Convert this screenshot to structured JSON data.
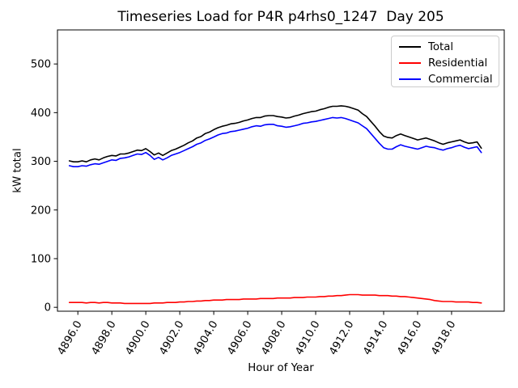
{
  "chart": {
    "title": "Timeseries Load for P4R p4rhs0_1247  Day 205",
    "xlabel": "Hour of Year",
    "ylabel": "kW total"
  },
  "chart_data": {
    "type": "line",
    "title": "Timeseries Load for P4R p4rhs0_1247  Day 205",
    "xlabel": "Hour of Year",
    "ylabel": "kW total",
    "grid": false,
    "legend_position": "upper right",
    "xlim": [
      4894.8,
      4921.1
    ],
    "ylim": [
      -8,
      570
    ],
    "x_ticks": [
      4896.0,
      4898.0,
      4900.0,
      4902.0,
      4904.0,
      4906.0,
      4908.0,
      4910.0,
      4912.0,
      4914.0,
      4916.0,
      4918.0
    ],
    "x_tick_decimals": 1,
    "y_ticks": [
      0,
      100,
      200,
      300,
      400,
      500
    ],
    "x_start": 4895.5,
    "x_step": 0.25,
    "n_points": 98,
    "series": [
      {
        "name": "Total",
        "color": "#000000",
        "values": [
          301,
          299,
          299,
          301,
          299,
          303,
          305,
          303,
          307,
          310,
          312,
          311,
          315,
          315,
          317,
          320,
          323,
          322,
          326,
          320,
          313,
          317,
          312,
          317,
          322,
          325,
          329,
          333,
          338,
          342,
          348,
          351,
          357,
          360,
          365,
          369,
          372,
          374,
          377,
          378,
          380,
          383,
          385,
          388,
          390,
          390,
          393,
          394,
          394,
          392,
          391,
          389,
          390,
          393,
          395,
          398,
          400,
          402,
          403,
          406,
          408,
          411,
          413,
          413,
          414,
          413,
          411,
          408,
          405,
          398,
          392,
          382,
          372,
          361,
          352,
          349,
          348,
          353,
          356,
          353,
          350,
          347,
          344,
          346,
          348,
          345,
          342,
          338,
          335,
          338,
          340,
          342,
          344,
          340,
          337,
          338,
          340,
          327
        ]
      },
      {
        "name": "Residential",
        "color": "#ff0000",
        "values": [
          10,
          10,
          10,
          10,
          9,
          10,
          10,
          9,
          10,
          10,
          9,
          9,
          9,
          8,
          8,
          8,
          8,
          8,
          8,
          8,
          9,
          9,
          9,
          10,
          10,
          10,
          11,
          11,
          12,
          12,
          13,
          13,
          14,
          14,
          15,
          15,
          15,
          16,
          16,
          16,
          16,
          17,
          17,
          17,
          17,
          18,
          18,
          18,
          18,
          19,
          19,
          19,
          19,
          20,
          20,
          20,
          21,
          21,
          21,
          22,
          22,
          23,
          23,
          24,
          24,
          25,
          26,
          26,
          26,
          25,
          25,
          25,
          25,
          24,
          24,
          24,
          23,
          23,
          22,
          22,
          21,
          20,
          19,
          18,
          17,
          16,
          14,
          13,
          12,
          12,
          12,
          11,
          11,
          11,
          11,
          10,
          10,
          9
        ]
      },
      {
        "name": "Commercial",
        "color": "#0000ff",
        "values": [
          291,
          289,
          289,
          291,
          290,
          293,
          295,
          294,
          297,
          300,
          303,
          302,
          306,
          307,
          309,
          312,
          315,
          314,
          318,
          312,
          304,
          308,
          303,
          307,
          312,
          315,
          318,
          322,
          326,
          330,
          335,
          338,
          343,
          346,
          350,
          354,
          357,
          358,
          361,
          362,
          364,
          366,
          368,
          371,
          373,
          372,
          375,
          376,
          376,
          373,
          372,
          370,
          371,
          373,
          375,
          378,
          379,
          381,
          382,
          384,
          386,
          388,
          390,
          389,
          390,
          388,
          385,
          382,
          379,
          373,
          367,
          357,
          347,
          337,
          328,
          325,
          325,
          330,
          334,
          331,
          329,
          327,
          325,
          328,
          331,
          329,
          328,
          325,
          323,
          326,
          328,
          331,
          333,
          329,
          326,
          328,
          330,
          318
        ]
      }
    ]
  }
}
